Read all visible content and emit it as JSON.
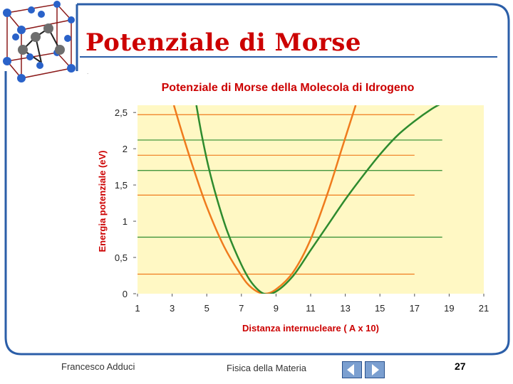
{
  "slide": {
    "title": "Potenziale di Morse",
    "author": "Francesco Adduci",
    "course": "Fisica della Materia",
    "page": "27"
  },
  "colors": {
    "title": "#cc0000",
    "frame_border": "#2b5ea8",
    "plot_bg": "#fff8c4",
    "orange": "#ef7b1d",
    "green": "#2e8b2e",
    "label_red": "#cc0000"
  },
  "nav": {
    "prev_icon": "triangle-left-icon",
    "next_icon": "triangle-right-icon"
  },
  "chart_data": {
    "type": "line",
    "title": "Potenziale di Morse della Molecola di Idrogeno",
    "xlabel": "Distanza internucleare ( A x 10)",
    "ylabel": "Energia potenziale (eV)",
    "xlim": [
      1,
      21
    ],
    "ylim": [
      0,
      2.6
    ],
    "x_ticks": [
      "1",
      "3",
      "5",
      "7",
      "9",
      "11",
      "13",
      "15",
      "17",
      "19",
      "21"
    ],
    "y_ticks": [
      "0",
      "0,5",
      "1",
      "1,5",
      "2",
      "2,5"
    ],
    "y_tick_values": [
      0,
      0.5,
      1,
      1.5,
      2,
      2.5
    ],
    "grid": false,
    "series": [
      {
        "color": "#ef7b1d",
        "points": [
          [
            3.1,
            2.6
          ],
          [
            3.6,
            2.2
          ],
          [
            4.2,
            1.75
          ],
          [
            5,
            1.2
          ],
          [
            6,
            0.65
          ],
          [
            7,
            0.25
          ],
          [
            7.6,
            0.08
          ],
          [
            8.3,
            0.0
          ],
          [
            9,
            0.06
          ],
          [
            10,
            0.3
          ],
          [
            11,
            0.75
          ],
          [
            12,
            1.4
          ],
          [
            12.8,
            2.0
          ],
          [
            13.6,
            2.6
          ]
        ]
      },
      {
        "color": "#2e8b2e",
        "points": [
          [
            4.4,
            2.6
          ],
          [
            4.7,
            2.2
          ],
          [
            5.1,
            1.75
          ],
          [
            5.6,
            1.3
          ],
          [
            6.2,
            0.85
          ],
          [
            7,
            0.4
          ],
          [
            7.6,
            0.15
          ],
          [
            8.3,
            0.0
          ],
          [
            9,
            0.03
          ],
          [
            10,
            0.25
          ],
          [
            11,
            0.6
          ],
          [
            12,
            0.95
          ],
          [
            13,
            1.3
          ],
          [
            14,
            1.62
          ],
          [
            15,
            1.92
          ],
          [
            16,
            2.18
          ],
          [
            17,
            2.38
          ],
          [
            18,
            2.55
          ],
          [
            18.6,
            2.63
          ]
        ]
      }
    ],
    "energy_levels": [
      {
        "energy": 2.47,
        "xmin": 1,
        "xmax": 17,
        "color": "#ef7b1d"
      },
      {
        "energy": 2.12,
        "xmin": 1,
        "xmax": 18.6,
        "color": "#2e8b2e"
      },
      {
        "energy": 1.91,
        "xmin": 1,
        "xmax": 17,
        "color": "#ef7b1d"
      },
      {
        "energy": 1.7,
        "xmin": 1,
        "xmax": 18.6,
        "color": "#2e8b2e"
      },
      {
        "energy": 1.36,
        "xmin": 1,
        "xmax": 17,
        "color": "#ef7b1d"
      },
      {
        "energy": 0.78,
        "xmin": 1,
        "xmax": 18.6,
        "color": "#2e8b2e"
      },
      {
        "energy": 0.27,
        "xmin": 1,
        "xmax": 17,
        "color": "#ef7b1d"
      }
    ]
  }
}
